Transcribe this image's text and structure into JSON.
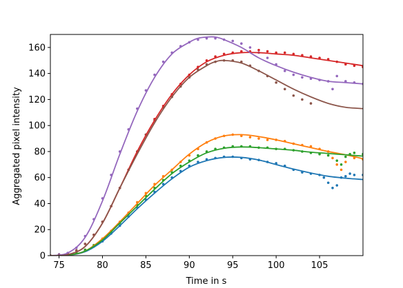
{
  "chart_data": {
    "type": "line",
    "title": "",
    "xlabel": "Time in s",
    "ylabel": "Aggregated pixel intensity",
    "xlim": [
      74,
      110
    ],
    "ylim": [
      0,
      170
    ],
    "xticks": [
      75,
      80,
      85,
      90,
      95,
      100,
      105
    ],
    "yticks": [
      0,
      20,
      40,
      60,
      80,
      100,
      120,
      140,
      160
    ],
    "grid": false,
    "legend": "none",
    "series": [
      {
        "color": "#1f77b4",
        "fit": {
          "x": [
            74,
            76,
            78,
            80,
            82,
            84,
            86,
            88,
            90,
            92,
            94,
            96,
            98,
            100,
            102,
            104,
            106,
            108,
            110
          ],
          "y": [
            0,
            0.3,
            3,
            11,
            23,
            36,
            48,
            59,
            68,
            73,
            75.5,
            75.5,
            73.5,
            70,
            66.5,
            63.5,
            61,
            59.5,
            58.5
          ]
        },
        "points": {
          "x": [
            74,
            75,
            76,
            77,
            78,
            79,
            80,
            81,
            82,
            83,
            84,
            85,
            86,
            87,
            88,
            89,
            90,
            91,
            92,
            93,
            94,
            95,
            96,
            97,
            98,
            99,
            100,
            101,
            102,
            103,
            104,
            105,
            105.5,
            106,
            106.5,
            107,
            107.5,
            108,
            108.5,
            109,
            110
          ],
          "y": [
            0,
            0.3,
            0.8,
            2,
            4,
            7,
            11,
            17,
            23,
            30,
            37,
            43,
            49,
            55,
            60,
            65,
            69,
            72,
            74,
            75,
            76,
            76,
            75,
            74,
            73.5,
            72,
            71,
            69,
            66,
            64,
            63,
            62,
            60,
            56,
            52,
            54,
            60,
            61,
            63,
            62,
            62
          ]
        }
      },
      {
        "color": "#ff7f0e",
        "fit": {
          "x": [
            74,
            76,
            78,
            80,
            82,
            84,
            86,
            88,
            90,
            92,
            94,
            96,
            98,
            100,
            102,
            104,
            106,
            108,
            110
          ],
          "y": [
            0,
            0.4,
            3.5,
            13,
            26,
            40,
            54,
            66,
            78,
            87,
            92,
            93,
            91.5,
            89,
            86,
            83,
            80,
            77.5,
            74.5
          ]
        },
        "points": {
          "x": [
            74,
            75,
            76,
            77,
            78,
            79,
            80,
            81,
            82,
            83,
            84,
            85,
            86,
            87,
            88,
            89,
            90,
            91,
            92,
            93,
            94,
            95,
            96,
            97,
            98,
            99,
            100,
            101,
            102,
            103,
            104,
            105,
            106,
            106.5,
            107,
            107.5,
            108,
            109,
            110
          ],
          "y": [
            0,
            0.3,
            0.8,
            2,
            4.5,
            8,
            13,
            19,
            26,
            33,
            41,
            48,
            55,
            61,
            66,
            72,
            77,
            82,
            87,
            90,
            92,
            93,
            92,
            91,
            90,
            89,
            89,
            88,
            86,
            85,
            84,
            82,
            80,
            75,
            70,
            66,
            72,
            75,
            74
          ]
        }
      },
      {
        "color": "#2ca02c",
        "fit": {
          "x": [
            74,
            76,
            78,
            80,
            82,
            84,
            86,
            88,
            90,
            92,
            94,
            96,
            98,
            100,
            102,
            104,
            106,
            108,
            110
          ],
          "y": [
            0,
            0.4,
            3.5,
            12,
            25,
            38,
            51,
            63,
            72,
            79,
            82.5,
            83.5,
            83,
            82,
            81,
            79.5,
            78.5,
            77.5,
            76.5
          ]
        },
        "points": {
          "x": [
            74,
            75,
            76,
            77,
            78,
            79,
            80,
            81,
            82,
            83,
            84,
            85,
            86,
            87,
            88,
            89,
            90,
            91,
            92,
            93,
            94,
            95,
            96,
            97,
            98,
            99,
            100,
            101,
            102,
            103,
            104,
            105,
            106,
            107,
            107.5,
            108,
            108.5,
            109,
            110
          ],
          "y": [
            0,
            0.3,
            0.8,
            2,
            4.5,
            8,
            12,
            18,
            25,
            32,
            39,
            46,
            52,
            58,
            64,
            69,
            73,
            77,
            80,
            82,
            83,
            84,
            84,
            84,
            83,
            83,
            82,
            82,
            81,
            80,
            79,
            78,
            77,
            73,
            70,
            76,
            78,
            79,
            78
          ]
        }
      },
      {
        "color": "#d62728",
        "fit": {
          "x": [
            74,
            76,
            78,
            80,
            82,
            84,
            86,
            88,
            90,
            92,
            94,
            96,
            98,
            100,
            102,
            104,
            106,
            108,
            110
          ],
          "y": [
            0,
            0.8,
            7,
            25,
            52,
            80,
            104,
            124,
            139,
            149,
            154,
            156,
            156,
            155,
            154,
            152,
            150,
            148,
            146
          ]
        },
        "points": {
          "x": [
            74,
            75,
            76,
            77,
            78,
            79,
            80,
            81,
            82,
            83,
            84,
            85,
            86,
            87,
            88,
            89,
            90,
            91,
            92,
            93,
            94,
            95,
            96,
            97,
            98,
            99,
            100,
            101,
            102,
            103,
            104,
            105,
            106,
            107,
            108,
            109,
            110
          ],
          "y": [
            0,
            0.5,
            1.5,
            4,
            9,
            16,
            26,
            38,
            52,
            66,
            80,
            93,
            105,
            115,
            124,
            132,
            139,
            145,
            150,
            153,
            155,
            156,
            157,
            157,
            158,
            157,
            156,
            156,
            155,
            154,
            153,
            152,
            151,
            149,
            147,
            146,
            145
          ]
        }
      },
      {
        "color": "#9467bd",
        "fit": {
          "x": [
            74,
            76,
            78,
            80,
            82,
            84,
            86,
            88,
            90,
            91,
            92,
            93,
            94,
            96,
            98,
            100,
            102,
            104,
            106,
            108,
            110
          ],
          "y": [
            0,
            2,
            14,
            42,
            78,
            111,
            137,
            155,
            164,
            167,
            168,
            168,
            166,
            160,
            152,
            146,
            141,
            137,
            134,
            133,
            132
          ]
        },
        "points": {
          "x": [
            74,
            75,
            76,
            77,
            78,
            79,
            80,
            81,
            82,
            83,
            84,
            85,
            86,
            87,
            88,
            89,
            90,
            91,
            92,
            93,
            94,
            95,
            96,
            97,
            98,
            99,
            100,
            101,
            102,
            103,
            104,
            105,
            106,
            106.5,
            107,
            108,
            109,
            110
          ],
          "y": [
            0,
            1,
            2,
            6,
            15,
            28,
            44,
            62,
            80,
            97,
            113,
            127,
            139,
            149,
            156,
            161,
            164,
            166,
            167,
            167,
            166,
            165,
            163,
            160,
            156,
            152,
            147,
            142,
            139,
            137,
            136,
            135,
            134,
            128,
            138,
            134,
            133,
            132
          ]
        }
      },
      {
        "color": "#8c564b",
        "fit": {
          "x": [
            74,
            76,
            78,
            80,
            82,
            84,
            86,
            88,
            90,
            92,
            93,
            94,
            96,
            98,
            100,
            102,
            104,
            106,
            108,
            110
          ],
          "y": [
            0,
            0.8,
            7,
            25,
            52,
            78,
            102,
            122,
            137,
            146,
            149,
            150,
            148,
            142,
            135,
            128,
            122,
            117,
            114,
            113
          ]
        },
        "points": {
          "x": [
            74,
            75,
            76,
            77,
            78,
            79,
            80,
            81,
            82,
            83,
            84,
            85,
            86,
            87,
            88,
            89,
            90,
            91,
            92,
            93,
            94,
            95,
            96,
            97,
            98,
            99,
            100,
            101,
            102,
            103,
            104
          ],
          "y": [
            0,
            0.5,
            1.5,
            4,
            9,
            16,
            26,
            38,
            52,
            66,
            80,
            93,
            104,
            114,
            122,
            130,
            137,
            143,
            147,
            149,
            150,
            150,
            149,
            146,
            142,
            138,
            133,
            128,
            123,
            120,
            117
          ]
        }
      }
    ]
  }
}
